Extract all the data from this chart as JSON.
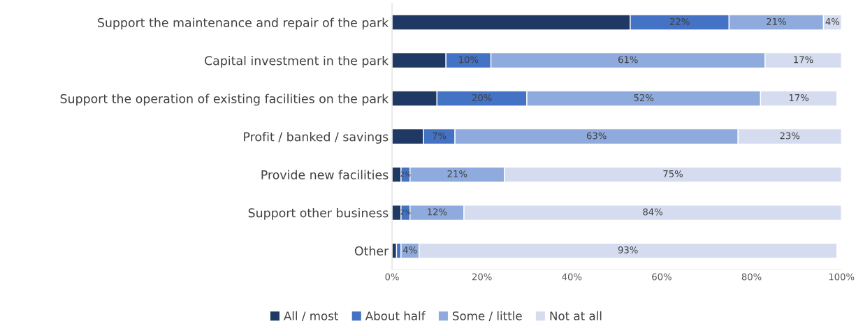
{
  "chart_data": {
    "type": "bar",
    "orientation": "horizontal",
    "stacked": true,
    "categories": [
      "Support the maintenance and repair of the park",
      "Capital investment in the park",
      "Support the operation of existing facilities on the park",
      "Profit / banked / savings",
      "Provide new facilities",
      "Support other business",
      "Other"
    ],
    "series": [
      {
        "name": "All / most",
        "color": "#203864",
        "values": [
          53,
          12,
          10,
          7,
          2,
          2,
          1
        ]
      },
      {
        "name": "About half",
        "color": "#4472c4",
        "values": [
          22,
          10,
          20,
          7,
          2,
          2,
          1
        ],
        "value_labels": [
          "22%",
          "10%",
          "20%",
          "7%",
          "2%",
          "2%",
          null
        ]
      },
      {
        "name": "Some / little",
        "color": "#8faadc",
        "values": [
          21,
          61,
          52,
          63,
          21,
          12,
          4
        ],
        "value_labels": [
          "21%",
          "61%",
          "52%",
          "63%",
          "21%",
          "12%",
          "4%"
        ]
      },
      {
        "name": "Not at all",
        "color": "#d6dcf0",
        "values": [
          4,
          17,
          17,
          23,
          75,
          84,
          93
        ],
        "value_labels": [
          "4%",
          "17%",
          "17%",
          "23%",
          "75%",
          "84%",
          "93%"
        ]
      }
    ],
    "xlim": [
      0,
      100
    ],
    "xticks": [
      {
        "value": 0,
        "label": "0%"
      },
      {
        "value": 20,
        "label": "20%"
      },
      {
        "value": 40,
        "label": "40%"
      },
      {
        "value": 60,
        "label": "60%"
      },
      {
        "value": 80,
        "label": "80%"
      },
      {
        "value": 100,
        "label": "100%"
      }
    ],
    "grid": false,
    "legend": "bottom"
  }
}
